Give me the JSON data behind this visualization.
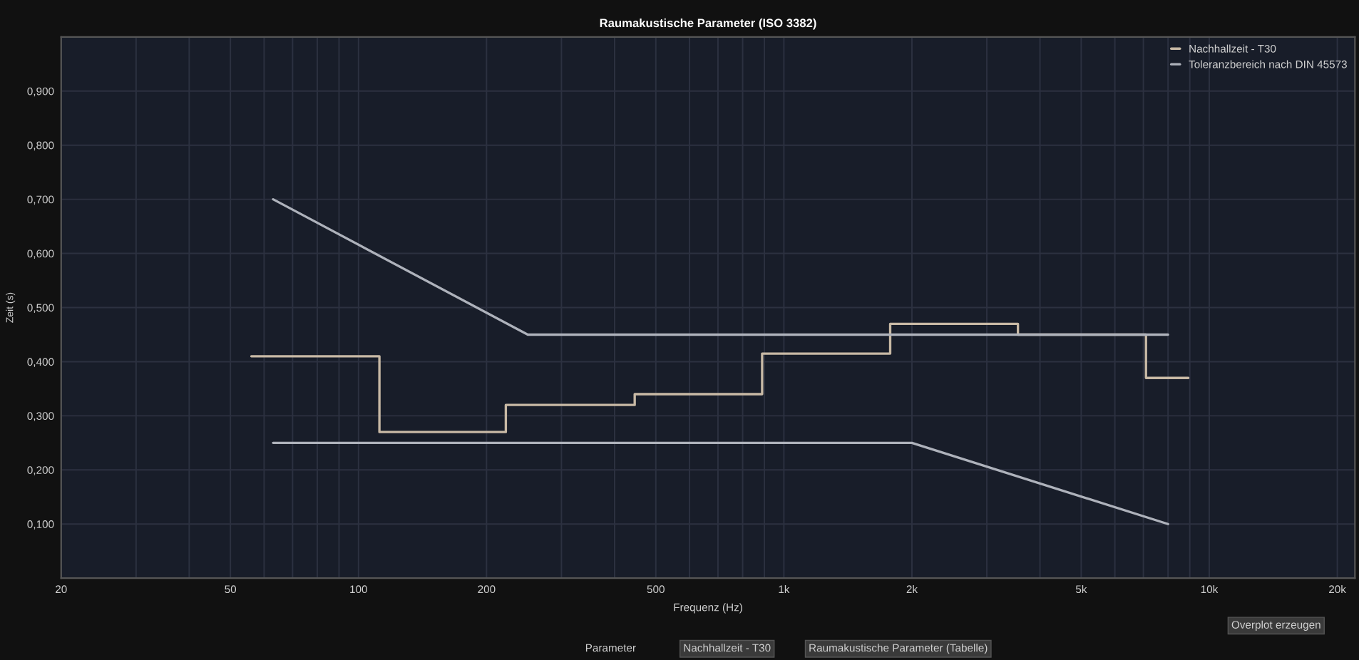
{
  "chart_data": {
    "type": "line",
    "title": "Raumakustische Parameter (ISO 3382)",
    "xlabel": "Frequenz (Hz)",
    "ylabel": "Zeit (s)",
    "series": [
      {
        "name": "Nachhallzeit - T30",
        "type": "step",
        "color": "#c8b9a5",
        "x": [
          56,
          112,
          222,
          446,
          889,
          1778,
          3550,
          7100,
          8930
        ],
        "values": [
          0.41,
          0.27,
          0.32,
          0.34,
          0.415,
          0.47,
          0.45,
          0.37,
          0.37
        ]
      },
      {
        "name": "Toleranzbereich nach DIN 45573",
        "color": "#aeb2bb",
        "x": [
          63,
          250,
          8000
        ],
        "values": [
          0.7,
          0.45,
          0.45
        ]
      },
      {
        "type": "line",
        "color": "#aeb2bb",
        "x": [
          63,
          2000,
          8000
        ],
        "values": [
          0.25,
          0.25,
          0.1
        ]
      }
    ],
    "log": "x",
    "xlim": [
      20,
      22000
    ],
    "xticks": [
      20,
      {
        "value": 30,
        "label": null
      },
      {
        "value": 40,
        "label": null
      },
      50,
      {
        "value": 60,
        "label": null
      },
      {
        "value": 70,
        "label": null
      },
      {
        "value": 80,
        "label": null
      },
      {
        "value": 90,
        "label": null
      },
      100,
      200,
      {
        "value": 300,
        "label": null
      },
      {
        "value": 400,
        "label": null
      },
      500,
      {
        "value": 600,
        "label": null
      },
      {
        "value": 700,
        "label": null
      },
      {
        "value": 800,
        "label": null
      },
      {
        "value": 900,
        "label": null
      },
      {
        "value": 1000,
        "label": "1k"
      },
      {
        "value": 2000,
        "label": "2k"
      },
      {
        "value": 3000,
        "label": null
      },
      {
        "value": 4000,
        "label": null
      },
      {
        "value": 5000,
        "label": "5k"
      },
      {
        "value": 6000,
        "label": null
      },
      {
        "value": 7000,
        "label": null
      },
      {
        "value": 8000,
        "label": null
      },
      {
        "value": 9000,
        "label": null
      },
      {
        "value": 10000,
        "label": "10k"
      },
      {
        "value": 20000,
        "label": "20k"
      }
    ],
    "ylim": [
      0,
      1.0
    ],
    "yticks": [
      {
        "value": 0.1,
        "label": "0,100"
      },
      {
        "value": 0.2,
        "label": "0,200"
      },
      {
        "value": 0.3,
        "label": "0,300"
      },
      {
        "value": 0.4,
        "label": "0,400"
      },
      {
        "value": 0.5,
        "label": "0,500"
      },
      {
        "value": 0.6,
        "label": "0,600"
      },
      {
        "value": 0.7,
        "label": "0,700"
      },
      {
        "value": 0.8,
        "label": "0,800"
      },
      {
        "value": 0.9,
        "label": "0,900"
      }
    ],
    "grid": true,
    "legend": "top right",
    "marker": "none",
    "line_style": "solid",
    "annotations": [
      "Overplot erzeugen",
      "Parameter",
      "Nachhallzeit - T30",
      "Raumakustische Parameter (Tabelle)"
    ]
  }
}
